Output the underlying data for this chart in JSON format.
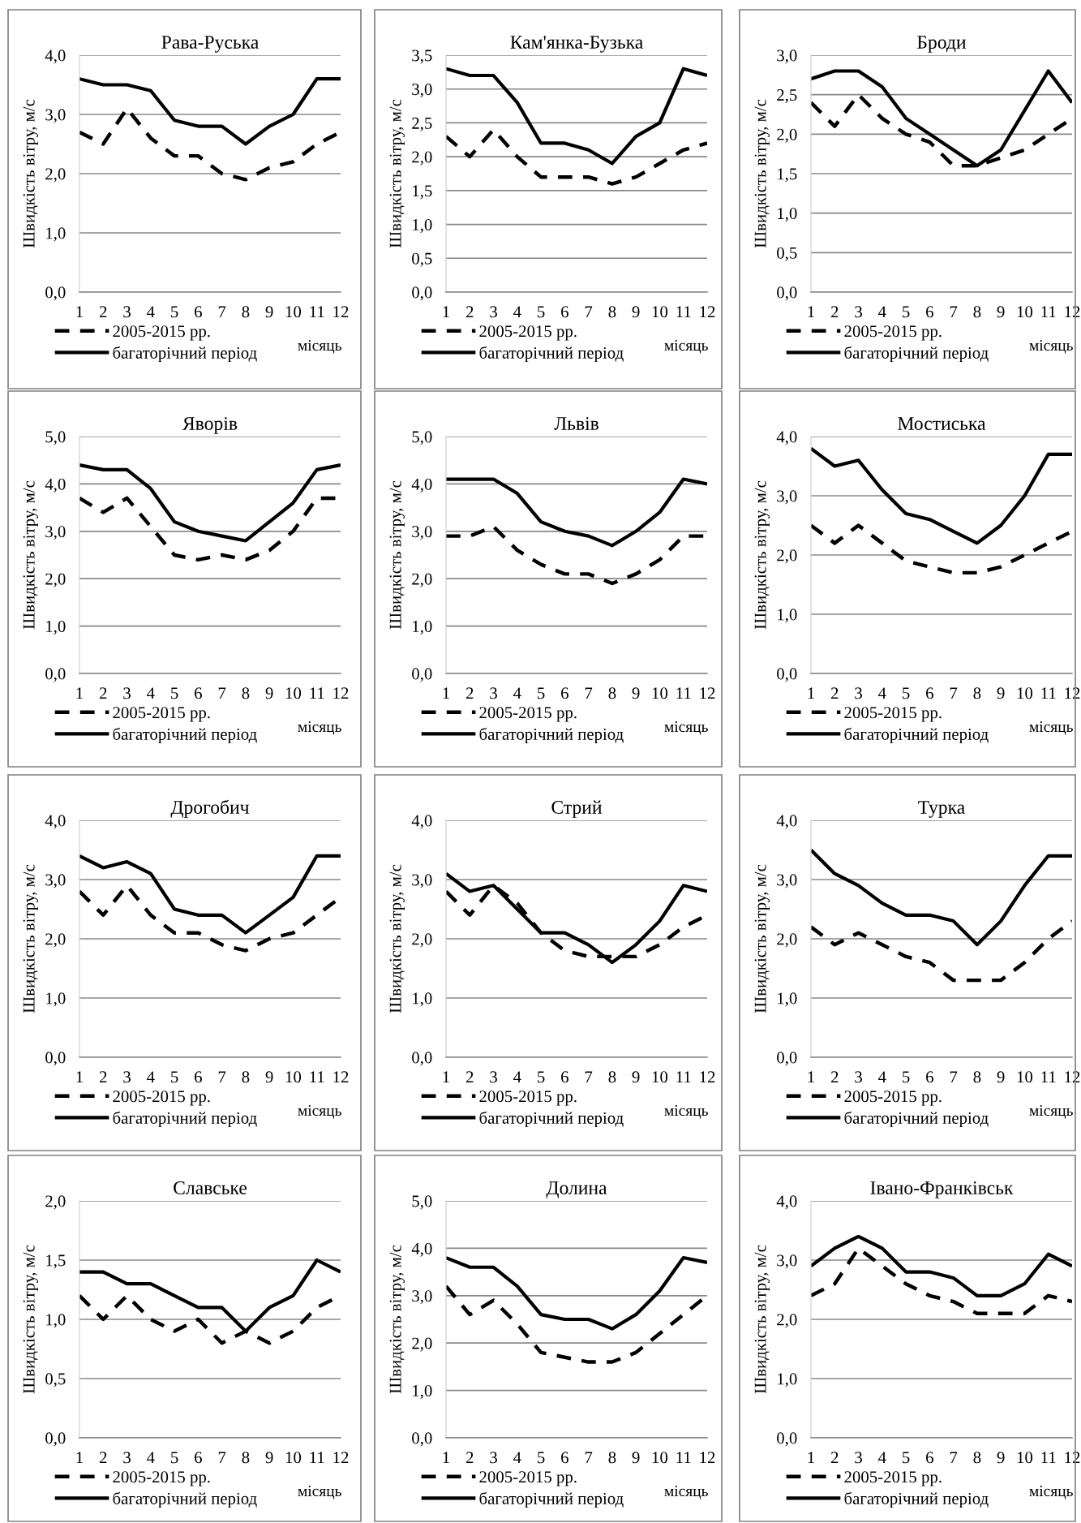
{
  "chart_data": [
    {
      "type": "line",
      "title": "Рава-Руська",
      "xlabel": "місяць",
      "ylabel": "Швидкість вітру, м/с",
      "categories": [
        "1",
        "2",
        "3",
        "4",
        "5",
        "6",
        "7",
        "8",
        "9",
        "10",
        "11",
        "12"
      ],
      "ylim": [
        0,
        4
      ],
      "yticks": [
        {
          "value": 0,
          "label": "0,0"
        },
        {
          "value": 1,
          "label": "1,0"
        },
        {
          "value": 2,
          "label": "2,0"
        },
        {
          "value": 3,
          "label": "3,0"
        },
        {
          "value": 4,
          "label": "4,0"
        }
      ],
      "grid": "y",
      "legend": "bottom",
      "series": [
        {
          "name": "2005-2015 рр.",
          "color": "#000000",
          "line_style": "dashed",
          "values": [
            2.7,
            2.5,
            3.1,
            2.6,
            2.3,
            2.3,
            2.0,
            1.9,
            2.1,
            2.2,
            2.5,
            2.7
          ]
        },
        {
          "name": "багаторічний період",
          "color": "#000000",
          "line_style": "solid",
          "values": [
            3.6,
            3.5,
            3.5,
            3.4,
            2.9,
            2.8,
            2.8,
            2.5,
            2.8,
            3.0,
            3.6,
            3.6
          ]
        }
      ]
    },
    {
      "type": "line",
      "title": "Кам'янка-Бузька",
      "xlabel": "місяць",
      "ylabel": "Швидкість вітру, м/с",
      "categories": [
        "1",
        "2",
        "3",
        "4",
        "5",
        "6",
        "7",
        "8",
        "9",
        "10",
        "11",
        "12"
      ],
      "ylim": [
        0,
        3.5
      ],
      "yticks": [
        {
          "value": 0,
          "label": "0,0"
        },
        {
          "value": 0.5,
          "label": "0,5"
        },
        {
          "value": 1,
          "label": "1,0"
        },
        {
          "value": 1.5,
          "label": "1,5"
        },
        {
          "value": 2,
          "label": "2,0"
        },
        {
          "value": 2.5,
          "label": "2,5"
        },
        {
          "value": 3,
          "label": "3,0"
        },
        {
          "value": 3.5,
          "label": "3,5"
        }
      ],
      "grid": "y",
      "legend": "bottom",
      "series": [
        {
          "name": "2005-2015 рр.",
          "color": "#000000",
          "line_style": "dashed",
          "values": [
            2.3,
            2.0,
            2.4,
            2.0,
            1.7,
            1.7,
            1.7,
            1.6,
            1.7,
            1.9,
            2.1,
            2.2
          ]
        },
        {
          "name": "багаторічний період",
          "color": "#000000",
          "line_style": "solid",
          "values": [
            3.3,
            3.2,
            3.2,
            2.8,
            2.2,
            2.2,
            2.1,
            1.9,
            2.3,
            2.5,
            3.3,
            3.2
          ]
        }
      ]
    },
    {
      "type": "line",
      "title": "Броди",
      "xlabel": "місяць",
      "ylabel": "Швидкість вітру, м/с",
      "categories": [
        "1",
        "2",
        "3",
        "4",
        "5",
        "6",
        "7",
        "8",
        "9",
        "10",
        "11",
        "12"
      ],
      "ylim": [
        0,
        3
      ],
      "yticks": [
        {
          "value": 0,
          "label": "0,0"
        },
        {
          "value": 0.5,
          "label": "0,5"
        },
        {
          "value": 1,
          "label": "1,0"
        },
        {
          "value": 1.5,
          "label": "1,5"
        },
        {
          "value": 2,
          "label": "2,0"
        },
        {
          "value": 2.5,
          "label": "2,5"
        },
        {
          "value": 3,
          "label": "3,0"
        }
      ],
      "grid": "y",
      "legend": "bottom",
      "series": [
        {
          "name": "2005-2015 рр.",
          "color": "#000000",
          "line_style": "dashed",
          "values": [
            2.4,
            2.1,
            2.5,
            2.2,
            2.0,
            1.9,
            1.6,
            1.6,
            1.7,
            1.8,
            2.0,
            2.2
          ]
        },
        {
          "name": "багаторічний період",
          "color": "#000000",
          "line_style": "solid",
          "values": [
            2.7,
            2.8,
            2.8,
            2.6,
            2.2,
            2.0,
            1.8,
            1.6,
            1.8,
            2.3,
            2.8,
            2.4
          ]
        }
      ]
    },
    {
      "type": "line",
      "title": "Яворів",
      "xlabel": "місяць",
      "ylabel": "Швидкість вітру, м/с",
      "categories": [
        "1",
        "2",
        "3",
        "4",
        "5",
        "6",
        "7",
        "8",
        "9",
        "10",
        "11",
        "12"
      ],
      "ylim": [
        0,
        5
      ],
      "yticks": [
        {
          "value": 0,
          "label": "0,0"
        },
        {
          "value": 1,
          "label": "1,0"
        },
        {
          "value": 2,
          "label": "2,0"
        },
        {
          "value": 3,
          "label": "3,0"
        },
        {
          "value": 4,
          "label": "4,0"
        },
        {
          "value": 5,
          "label": "5,0"
        }
      ],
      "grid": "y",
      "legend": "bottom",
      "series": [
        {
          "name": "2005-2015 рр.",
          "color": "#000000",
          "line_style": "dashed",
          "values": [
            3.7,
            3.4,
            3.7,
            3.1,
            2.5,
            2.4,
            2.5,
            2.4,
            2.6,
            3.0,
            3.7,
            3.7
          ]
        },
        {
          "name": "багаторічний період",
          "color": "#000000",
          "line_style": "solid",
          "values": [
            4.4,
            4.3,
            4.3,
            3.9,
            3.2,
            3.0,
            2.9,
            2.8,
            3.2,
            3.6,
            4.3,
            4.4
          ]
        }
      ]
    },
    {
      "type": "line",
      "title": "Львів",
      "xlabel": "місяць",
      "ylabel": "Швидкість вітру, м/с",
      "categories": [
        "1",
        "2",
        "3",
        "4",
        "5",
        "6",
        "7",
        "8",
        "9",
        "10",
        "11",
        "12"
      ],
      "ylim": [
        0,
        5
      ],
      "yticks": [
        {
          "value": 0,
          "label": "0,0"
        },
        {
          "value": 1,
          "label": "1,0"
        },
        {
          "value": 2,
          "label": "2,0"
        },
        {
          "value": 3,
          "label": "3,0"
        },
        {
          "value": 4,
          "label": "4,0"
        },
        {
          "value": 5,
          "label": "5,0"
        }
      ],
      "grid": "y",
      "legend": "bottom",
      "series": [
        {
          "name": "2005-2015 рр.",
          "color": "#000000",
          "line_style": "dashed",
          "values": [
            2.9,
            2.9,
            3.1,
            2.6,
            2.3,
            2.1,
            2.1,
            1.9,
            2.1,
            2.4,
            2.9,
            2.9
          ]
        },
        {
          "name": "багаторічний період",
          "color": "#000000",
          "line_style": "solid",
          "values": [
            4.1,
            4.1,
            4.1,
            3.8,
            3.2,
            3.0,
            2.9,
            2.7,
            3.0,
            3.4,
            4.1,
            4.0
          ]
        }
      ]
    },
    {
      "type": "line",
      "title": "Мостиська",
      "xlabel": "місяць",
      "ylabel": "Швидкість вітру, м/с",
      "categories": [
        "1",
        "2",
        "3",
        "4",
        "5",
        "6",
        "7",
        "8",
        "9",
        "10",
        "11",
        "12"
      ],
      "ylim": [
        0,
        4
      ],
      "yticks": [
        {
          "value": 0,
          "label": "0,0"
        },
        {
          "value": 1,
          "label": "1,0"
        },
        {
          "value": 2,
          "label": "2,0"
        },
        {
          "value": 3,
          "label": "3,0"
        },
        {
          "value": 4,
          "label": "4,0"
        }
      ],
      "grid": "y",
      "legend": "bottom",
      "series": [
        {
          "name": "2005-2015 рр.",
          "color": "#000000",
          "line_style": "dashed",
          "values": [
            2.5,
            2.2,
            2.5,
            2.2,
            1.9,
            1.8,
            1.7,
            1.7,
            1.8,
            2.0,
            2.2,
            2.4
          ]
        },
        {
          "name": "багаторічний період",
          "color": "#000000",
          "line_style": "solid",
          "values": [
            3.8,
            3.5,
            3.6,
            3.1,
            2.7,
            2.6,
            2.4,
            2.2,
            2.5,
            3.0,
            3.7,
            3.7
          ]
        }
      ]
    },
    {
      "type": "line",
      "title": "Дрогобич",
      "xlabel": "місяць",
      "ylabel": "Швидкість вітру, м/с",
      "categories": [
        "1",
        "2",
        "3",
        "4",
        "5",
        "6",
        "7",
        "8",
        "9",
        "10",
        "11",
        "12"
      ],
      "ylim": [
        0,
        4
      ],
      "yticks": [
        {
          "value": 0,
          "label": "0,0"
        },
        {
          "value": 1,
          "label": "1,0"
        },
        {
          "value": 2,
          "label": "2,0"
        },
        {
          "value": 3,
          "label": "3,0"
        },
        {
          "value": 4,
          "label": "4,0"
        }
      ],
      "grid": "y",
      "legend": "bottom",
      "series": [
        {
          "name": "2005-2015 рр.",
          "color": "#000000",
          "line_style": "dashed",
          "values": [
            2.8,
            2.4,
            2.9,
            2.4,
            2.1,
            2.1,
            1.9,
            1.8,
            2.0,
            2.1,
            2.4,
            2.7
          ]
        },
        {
          "name": "багаторічний період",
          "color": "#000000",
          "line_style": "solid",
          "values": [
            3.4,
            3.2,
            3.3,
            3.1,
            2.5,
            2.4,
            2.4,
            2.1,
            2.4,
            2.7,
            3.4,
            3.4
          ]
        }
      ]
    },
    {
      "type": "line",
      "title": "Стрий",
      "xlabel": "місяць",
      "ylabel": "Швидкість вітру, м/с",
      "categories": [
        "1",
        "2",
        "3",
        "4",
        "5",
        "6",
        "7",
        "8",
        "9",
        "10",
        "11",
        "12"
      ],
      "ylim": [
        0,
        4
      ],
      "yticks": [
        {
          "value": 0,
          "label": "0,0"
        },
        {
          "value": 1,
          "label": "1,0"
        },
        {
          "value": 2,
          "label": "2,0"
        },
        {
          "value": 3,
          "label": "3,0"
        },
        {
          "value": 4,
          "label": "4,0"
        }
      ],
      "grid": "y",
      "legend": "bottom",
      "series": [
        {
          "name": "2005-2015 рр.",
          "color": "#000000",
          "line_style": "dashed",
          "values": [
            2.8,
            2.4,
            2.9,
            2.6,
            2.1,
            1.8,
            1.7,
            1.7,
            1.7,
            1.9,
            2.2,
            2.4
          ]
        },
        {
          "name": "багаторічний період",
          "color": "#000000",
          "line_style": "solid",
          "values": [
            3.1,
            2.8,
            2.9,
            2.5,
            2.1,
            2.1,
            1.9,
            1.6,
            1.9,
            2.3,
            2.9,
            2.8
          ]
        }
      ]
    },
    {
      "type": "line",
      "title": "Турка",
      "xlabel": "місяць",
      "ylabel": "Швидкість вітру, м/с",
      "categories": [
        "1",
        "2",
        "3",
        "4",
        "5",
        "6",
        "7",
        "8",
        "9",
        "10",
        "11",
        "12"
      ],
      "ylim": [
        0,
        4
      ],
      "yticks": [
        {
          "value": 0,
          "label": "0,0"
        },
        {
          "value": 1,
          "label": "1,0"
        },
        {
          "value": 2,
          "label": "2,0"
        },
        {
          "value": 3,
          "label": "3,0"
        },
        {
          "value": 4,
          "label": "4,0"
        }
      ],
      "grid": "y",
      "legend": "bottom",
      "series": [
        {
          "name": "2005-2015 рр.",
          "color": "#000000",
          "line_style": "dashed",
          "values": [
            2.2,
            1.9,
            2.1,
            1.9,
            1.7,
            1.6,
            1.3,
            1.3,
            1.3,
            1.6,
            2.0,
            2.3
          ]
        },
        {
          "name": "багаторічний період",
          "color": "#000000",
          "line_style": "solid",
          "values": [
            3.5,
            3.1,
            2.9,
            2.6,
            2.4,
            2.4,
            2.3,
            1.9,
            2.3,
            2.9,
            3.4,
            3.4
          ]
        }
      ]
    },
    {
      "type": "line",
      "title": "Славське",
      "xlabel": "місяць",
      "ylabel": "Швидкість вітру, м/с",
      "categories": [
        "1",
        "2",
        "3",
        "4",
        "5",
        "6",
        "7",
        "8",
        "9",
        "10",
        "11",
        "12"
      ],
      "ylim": [
        0,
        2
      ],
      "yticks": [
        {
          "value": 0,
          "label": "0,0"
        },
        {
          "value": 0.5,
          "label": "0,5"
        },
        {
          "value": 1,
          "label": "1,0"
        },
        {
          "value": 1.5,
          "label": "1,5"
        },
        {
          "value": 2,
          "label": "2,0"
        }
      ],
      "grid": "y",
      "legend": "bottom",
      "series": [
        {
          "name": "2005-2015 рр.",
          "color": "#000000",
          "line_style": "dashed",
          "values": [
            1.2,
            1.0,
            1.2,
            1.0,
            0.9,
            1.0,
            0.8,
            0.9,
            0.8,
            0.9,
            1.1,
            1.2
          ]
        },
        {
          "name": "багаторічний період",
          "color": "#000000",
          "line_style": "solid",
          "values": [
            1.4,
            1.4,
            1.3,
            1.3,
            1.2,
            1.1,
            1.1,
            0.9,
            1.1,
            1.2,
            1.5,
            1.4
          ]
        }
      ]
    },
    {
      "type": "line",
      "title": "Долина",
      "xlabel": "місяць",
      "ylabel": "Швидкість вітру, м/с",
      "categories": [
        "1",
        "2",
        "3",
        "4",
        "5",
        "6",
        "7",
        "8",
        "9",
        "10",
        "11",
        "12"
      ],
      "ylim": [
        0,
        5
      ],
      "yticks": [
        {
          "value": 0,
          "label": "0,0"
        },
        {
          "value": 1,
          "label": "1,0"
        },
        {
          "value": 2,
          "label": "2,0"
        },
        {
          "value": 3,
          "label": "3,0"
        },
        {
          "value": 4,
          "label": "4,0"
        },
        {
          "value": 5,
          "label": "5,0"
        }
      ],
      "grid": "y",
      "legend": "bottom",
      "series": [
        {
          "name": "2005-2015 рр.",
          "color": "#000000",
          "line_style": "dashed",
          "values": [
            3.2,
            2.6,
            2.9,
            2.4,
            1.8,
            1.7,
            1.6,
            1.6,
            1.8,
            2.2,
            2.6,
            3.0
          ]
        },
        {
          "name": "багаторічний період",
          "color": "#000000",
          "line_style": "solid",
          "values": [
            3.8,
            3.6,
            3.6,
            3.2,
            2.6,
            2.5,
            2.5,
            2.3,
            2.6,
            3.1,
            3.8,
            3.7
          ]
        }
      ]
    },
    {
      "type": "line",
      "title": "Івано-Франківськ",
      "xlabel": "місяць",
      "ylabel": "Швидкість вітру, м/с",
      "categories": [
        "1",
        "2",
        "3",
        "4",
        "5",
        "6",
        "7",
        "8",
        "9",
        "10",
        "11",
        "12"
      ],
      "ylim": [
        0,
        4
      ],
      "yticks": [
        {
          "value": 0,
          "label": "0,0"
        },
        {
          "value": 1,
          "label": "1,0"
        },
        {
          "value": 2,
          "label": "2,0"
        },
        {
          "value": 3,
          "label": "3,0"
        },
        {
          "value": 4,
          "label": "4,0"
        }
      ],
      "grid": "y",
      "legend": "bottom",
      "series": [
        {
          "name": "2005-2015 рр.",
          "color": "#000000",
          "line_style": "dashed",
          "values": [
            2.4,
            2.6,
            3.2,
            2.9,
            2.6,
            2.4,
            2.3,
            2.1,
            2.1,
            2.1,
            2.4,
            2.3
          ]
        },
        {
          "name": "багаторічний період",
          "color": "#000000",
          "line_style": "solid",
          "values": [
            2.9,
            3.2,
            3.4,
            3.2,
            2.8,
            2.8,
            2.7,
            2.4,
            2.4,
            2.6,
            3.1,
            2.9
          ]
        }
      ]
    }
  ]
}
